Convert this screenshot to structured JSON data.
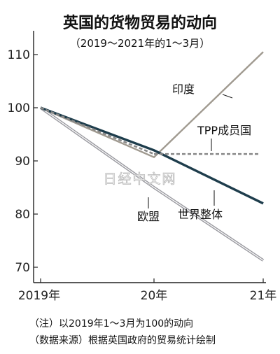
{
  "chart_data": {
    "type": "line",
    "title": "英国的货物贸易的动向",
    "subtitle": "（2019〜2021年的1〜3月）",
    "x_ticks": [
      "2019年",
      "20年",
      "21年"
    ],
    "x": [
      "2019",
      "2020",
      "2021"
    ],
    "y_ticks": [
      70,
      80,
      90,
      100,
      110
    ],
    "ylim": [
      68,
      114
    ],
    "grid": false,
    "series": [
      {
        "name": "印度",
        "values": [
          100,
          90.7,
          110.5
        ],
        "color": "#a09a90",
        "style": "solid"
      },
      {
        "name": "TPP成员国",
        "values": [
          100,
          91.3,
          91.3
        ],
        "color": "#888888",
        "style": "dashed"
      },
      {
        "name": "世界整体",
        "values": [
          100,
          92,
          82
        ],
        "color": "#1e3d4c",
        "style": "solid"
      },
      {
        "name": "欧盟",
        "values": [
          100,
          85,
          71.3
        ],
        "color": "#a8a8ac",
        "style": "double"
      }
    ],
    "notes": [
      "（注）以2019年1〜3月为100的动向",
      "（数据来源）根据英国政府的贸易统计绘制"
    ],
    "watermark": "日经中文网"
  }
}
